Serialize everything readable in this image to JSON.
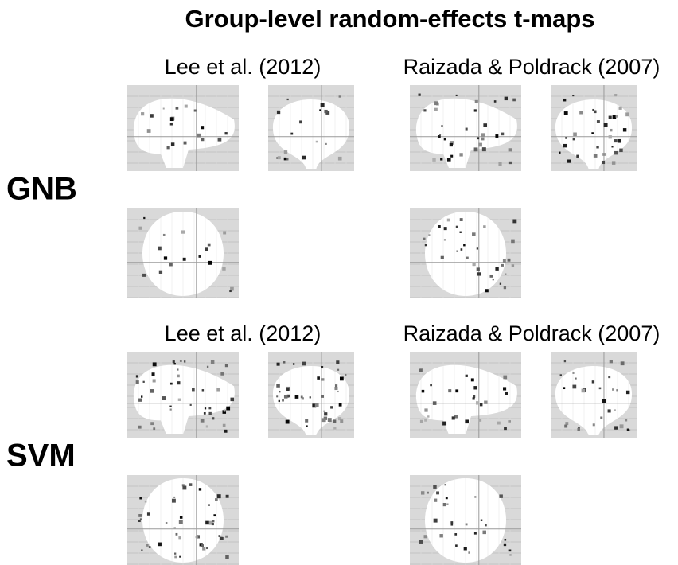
{
  "title": "Group-level random-effects t-maps",
  "rows": [
    {
      "label": "GNB",
      "columns": [
        {
          "heading": "Lee et al. (2012)"
        },
        {
          "heading": "Raizada & Poldrack (2007)"
        }
      ]
    },
    {
      "label": "SVM",
      "columns": [
        {
          "heading": "Lee et al. (2012)"
        },
        {
          "heading": "Raizada & Poldrack (2007)"
        }
      ]
    }
  ]
}
